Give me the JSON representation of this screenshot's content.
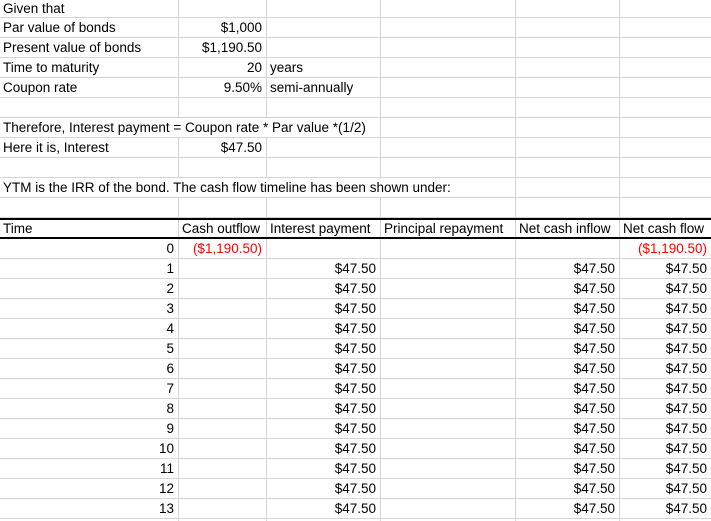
{
  "given": {
    "title": "Given that",
    "rows": [
      {
        "label": "Par value of bonds",
        "value": "$1,000",
        "unit": ""
      },
      {
        "label": "Present value of bonds",
        "value": "$1,190.50",
        "unit": ""
      },
      {
        "label": "Time to maturity",
        "value": "20",
        "unit": "years"
      },
      {
        "label": "Coupon rate",
        "value": "9.50%",
        "unit": "semi-annually"
      }
    ]
  },
  "notes": {
    "interest_formula": "Therefore, Interest payment = Coupon rate * Par value *(1/2)",
    "interest_label": "Here it is, Interest",
    "interest_value": "$47.50",
    "ytm_note": "YTM is the IRR of the bond. The cash flow timeline has been shown under:"
  },
  "table": {
    "headers": [
      "Time",
      "Cash outflow",
      "Interest payment",
      "Principal repayment",
      "Net cash inflow",
      "Net cash flow"
    ],
    "rows": [
      {
        "time": "0",
        "cash_outflow": "($1,190.50)",
        "interest_payment": "",
        "principal_repayment": "",
        "net_cash_inflow": "",
        "net_cash_flow": "($1,190.50)"
      },
      {
        "time": "1",
        "cash_outflow": "",
        "interest_payment": "$47.50",
        "principal_repayment": "",
        "net_cash_inflow": "$47.50",
        "net_cash_flow": "$47.50"
      },
      {
        "time": "2",
        "cash_outflow": "",
        "interest_payment": "$47.50",
        "principal_repayment": "",
        "net_cash_inflow": "$47.50",
        "net_cash_flow": "$47.50"
      },
      {
        "time": "3",
        "cash_outflow": "",
        "interest_payment": "$47.50",
        "principal_repayment": "",
        "net_cash_inflow": "$47.50",
        "net_cash_flow": "$47.50"
      },
      {
        "time": "4",
        "cash_outflow": "",
        "interest_payment": "$47.50",
        "principal_repayment": "",
        "net_cash_inflow": "$47.50",
        "net_cash_flow": "$47.50"
      },
      {
        "time": "5",
        "cash_outflow": "",
        "interest_payment": "$47.50",
        "principal_repayment": "",
        "net_cash_inflow": "$47.50",
        "net_cash_flow": "$47.50"
      },
      {
        "time": "6",
        "cash_outflow": "",
        "interest_payment": "$47.50",
        "principal_repayment": "",
        "net_cash_inflow": "$47.50",
        "net_cash_flow": "$47.50"
      },
      {
        "time": "7",
        "cash_outflow": "",
        "interest_payment": "$47.50",
        "principal_repayment": "",
        "net_cash_inflow": "$47.50",
        "net_cash_flow": "$47.50"
      },
      {
        "time": "8",
        "cash_outflow": "",
        "interest_payment": "$47.50",
        "principal_repayment": "",
        "net_cash_inflow": "$47.50",
        "net_cash_flow": "$47.50"
      },
      {
        "time": "9",
        "cash_outflow": "",
        "interest_payment": "$47.50",
        "principal_repayment": "",
        "net_cash_inflow": "$47.50",
        "net_cash_flow": "$47.50"
      },
      {
        "time": "10",
        "cash_outflow": "",
        "interest_payment": "$47.50",
        "principal_repayment": "",
        "net_cash_inflow": "$47.50",
        "net_cash_flow": "$47.50"
      },
      {
        "time": "11",
        "cash_outflow": "",
        "interest_payment": "$47.50",
        "principal_repayment": "",
        "net_cash_inflow": "$47.50",
        "net_cash_flow": "$47.50"
      },
      {
        "time": "12",
        "cash_outflow": "",
        "interest_payment": "$47.50",
        "principal_repayment": "",
        "net_cash_inflow": "$47.50",
        "net_cash_flow": "$47.50"
      },
      {
        "time": "13",
        "cash_outflow": "",
        "interest_payment": "$47.50",
        "principal_repayment": "",
        "net_cash_inflow": "$47.50",
        "net_cash_flow": "$47.50"
      }
    ]
  },
  "colors": {
    "negative_value": "#ff0000",
    "gridline": "#d4d4d4",
    "header_border": "#000000",
    "text": "#000000",
    "background": "#ffffff"
  }
}
